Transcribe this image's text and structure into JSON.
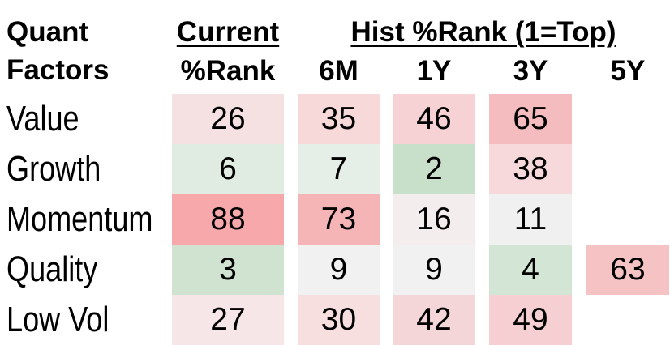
{
  "title": {
    "line1": "Quant",
    "line2": "Factors"
  },
  "header": {
    "current_group": "Current",
    "current_sub": "%Rank",
    "hist_group": "Hist %Rank (1=Top)",
    "hist_subs": [
      "6M",
      "1Y",
      "3Y",
      "5Y"
    ]
  },
  "rows": [
    {
      "label": "Value",
      "cells": [
        {
          "value": "26",
          "bg": "#f6e1e2"
        },
        {
          "value": "35",
          "bg": "#f7d9da"
        },
        {
          "value": "46",
          "bg": "#f6d2d4"
        },
        {
          "value": "65",
          "bg": "#f4bcbe"
        },
        {
          "value": "",
          "bg": ""
        }
      ]
    },
    {
      "label": "Growth",
      "cells": [
        {
          "value": "6",
          "bg": "#e0ebe2"
        },
        {
          "value": "7",
          "bg": "#e5efe7"
        },
        {
          "value": "2",
          "bg": "#c8dfc9"
        },
        {
          "value": "38",
          "bg": "#f7d9db"
        },
        {
          "value": "",
          "bg": ""
        }
      ]
    },
    {
      "label": "Momentum",
      "cells": [
        {
          "value": "88",
          "bg": "#f6a8ab"
        },
        {
          "value": "73",
          "bg": "#f5b5b7"
        },
        {
          "value": "16",
          "bg": "#f4edee"
        },
        {
          "value": "11",
          "bg": "#f0f0f1"
        },
        {
          "value": "",
          "bg": ""
        }
      ]
    },
    {
      "label": "Quality",
      "cells": [
        {
          "value": "3",
          "bg": "#cfe3d0"
        },
        {
          "value": "9",
          "bg": "#f2f1f2"
        },
        {
          "value": "9",
          "bg": "#f2f1f2"
        },
        {
          "value": "4",
          "bg": "#d3e5d4"
        },
        {
          "value": "63",
          "bg": "#f6c3c5"
        }
      ]
    },
    {
      "label": "Low Vol",
      "cells": [
        {
          "value": "27",
          "bg": "#f7e6e7"
        },
        {
          "value": "30",
          "bg": "#f7dfe0"
        },
        {
          "value": "42",
          "bg": "#f5d6d8"
        },
        {
          "value": "49",
          "bg": "#f5cfd1"
        },
        {
          "value": "",
          "bg": ""
        }
      ]
    }
  ],
  "chart_data": {
    "type": "heatmap",
    "title": "Quant Factors %Rank",
    "row_labels": [
      "Value",
      "Growth",
      "Momentum",
      "Quality",
      "Low Vol"
    ],
    "columns": [
      "Current %Rank",
      "6M",
      "1Y",
      "3Y",
      "5Y"
    ],
    "column_groups": [
      {
        "label": "Current",
        "columns": [
          "%Rank"
        ]
      },
      {
        "label": "Hist %Rank (1=Top)",
        "columns": [
          "6M",
          "1Y",
          "3Y",
          "5Y"
        ]
      }
    ],
    "values": [
      [
        26,
        35,
        46,
        65,
        null
      ],
      [
        6,
        7,
        2,
        38,
        null
      ],
      [
        88,
        73,
        16,
        11,
        null
      ],
      [
        3,
        9,
        9,
        4,
        63
      ],
      [
        27,
        30,
        42,
        49,
        null
      ]
    ],
    "scale_note": "1=Top",
    "color_scale": {
      "low_green": "#c8dfc9",
      "neutral": "#f2f1f2",
      "high_red": "#f6a8ab"
    }
  }
}
